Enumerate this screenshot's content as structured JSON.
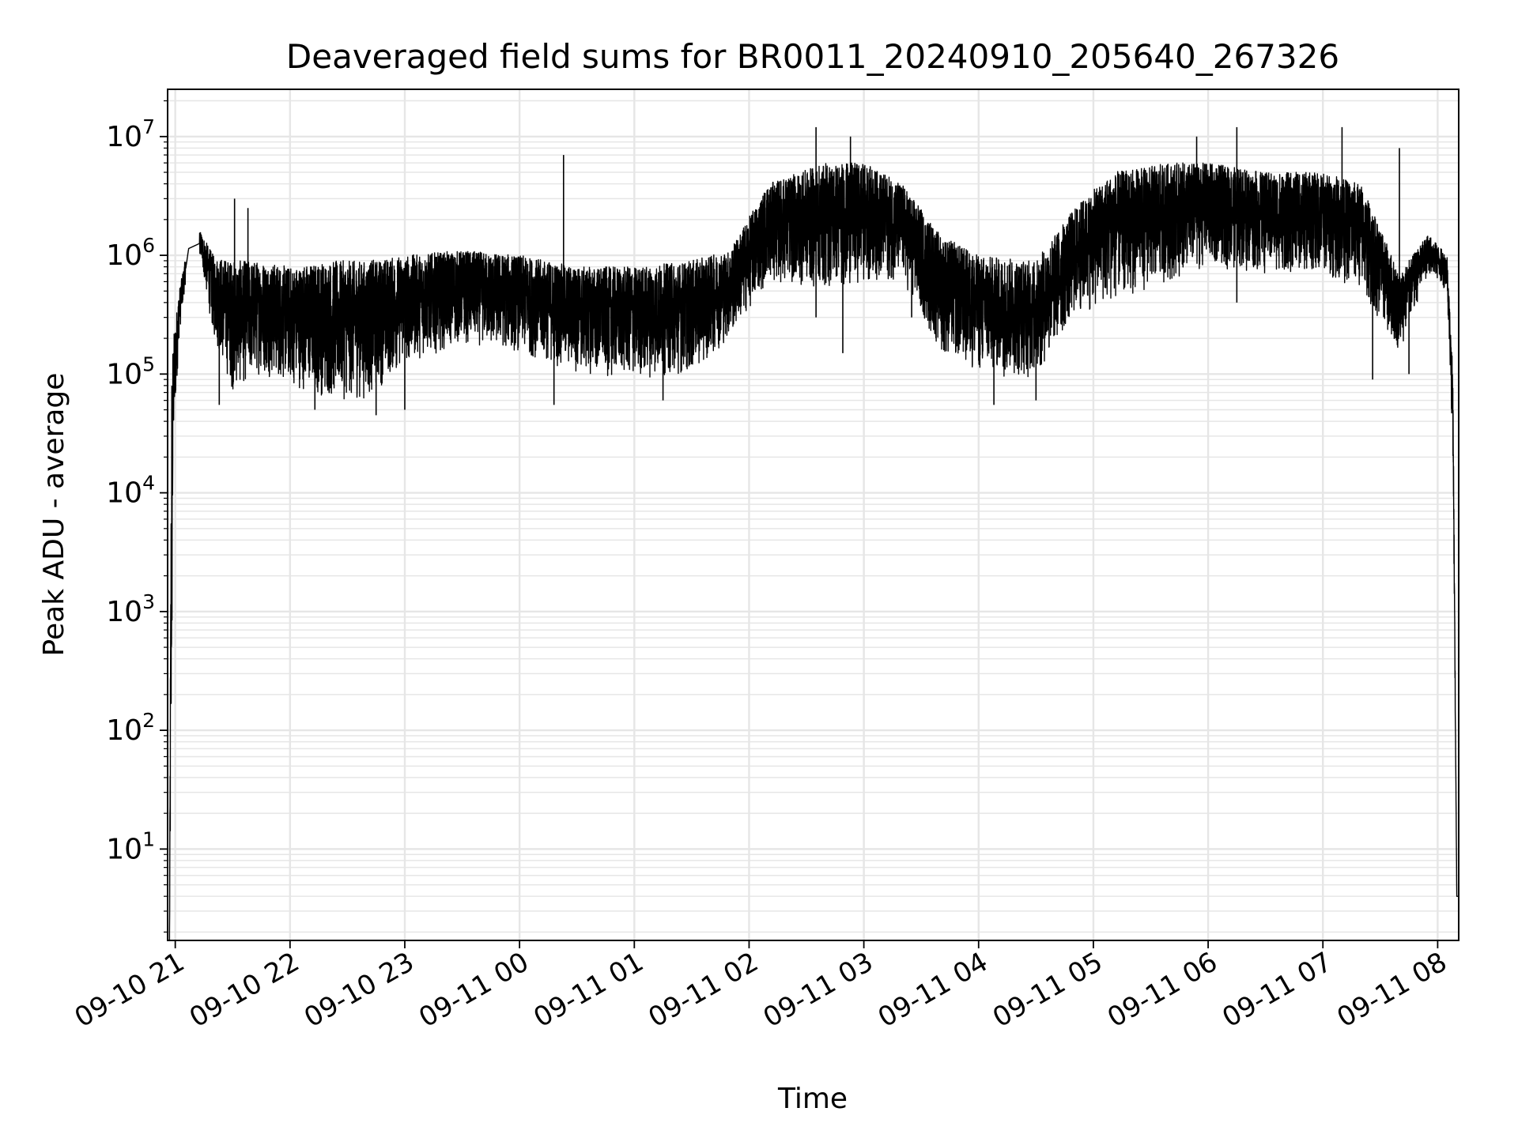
{
  "chart_data": {
    "type": "line",
    "title": "Deaveraged field sums for BR0011_20240910_205640_267326",
    "xlabel": "Time",
    "ylabel": "Peak ADU - average",
    "x_is_datetime": true,
    "x_range": [
      "2024-09-10T20:56",
      "2024-09-11T08:11"
    ],
    "y_scale": "log",
    "y_range": [
      1.7,
      25000000
    ],
    "x_ticks": [
      {
        "t": "2024-09-10T21:00",
        "label": "09-10 21"
      },
      {
        "t": "2024-09-10T22:00",
        "label": "09-10 22"
      },
      {
        "t": "2024-09-10T23:00",
        "label": "09-10 23"
      },
      {
        "t": "2024-09-11T00:00",
        "label": "09-11 00"
      },
      {
        "t": "2024-09-11T01:00",
        "label": "09-11 01"
      },
      {
        "t": "2024-09-11T02:00",
        "label": "09-11 02"
      },
      {
        "t": "2024-09-11T03:00",
        "label": "09-11 03"
      },
      {
        "t": "2024-09-11T04:00",
        "label": "09-11 04"
      },
      {
        "t": "2024-09-11T05:00",
        "label": "09-11 05"
      },
      {
        "t": "2024-09-11T06:00",
        "label": "09-11 06"
      },
      {
        "t": "2024-09-11T07:00",
        "label": "09-11 07"
      },
      {
        "t": "2024-09-11T08:00",
        "label": "09-11 08"
      }
    ],
    "y_ticks": [
      {
        "value": 10,
        "base": "10",
        "exp": "1"
      },
      {
        "value": 100,
        "base": "10",
        "exp": "2"
      },
      {
        "value": 1000,
        "base": "10",
        "exp": "3"
      },
      {
        "value": 10000,
        "base": "10",
        "exp": "4"
      },
      {
        "value": 100000,
        "base": "10",
        "exp": "5"
      },
      {
        "value": 1000000,
        "base": "10",
        "exp": "6"
      },
      {
        "value": 10000000,
        "base": "10",
        "exp": "7"
      }
    ],
    "grid": true,
    "minor_grid": true,
    "line_color": "#000000",
    "grid_color": "#e6e6e6",
    "series": [
      {
        "envelope_points": [
          {
            "t": "2024-09-10T20:57",
            "low": 2,
            "high": 2
          },
          {
            "t": "2024-09-10T20:58",
            "low": 20,
            "high": 150000
          },
          {
            "t": "2024-09-10T20:59",
            "low": 20000,
            "high": 200000
          },
          {
            "t": "2024-09-10T21:02",
            "low": 200000,
            "high": 500000
          },
          {
            "t": "2024-09-10T21:07",
            "low": 1000000,
            "high": 1300000
          },
          {
            "t": "2024-09-10T21:13",
            "low": 1000000,
            "high": 1600000
          },
          {
            "t": "2024-09-10T21:20",
            "low": 200000,
            "high": 1000000
          },
          {
            "t": "2024-09-10T21:30",
            "low": 70000,
            "high": 900000
          },
          {
            "t": "2024-09-10T21:45",
            "low": 100000,
            "high": 900000
          },
          {
            "t": "2024-09-10T22:00",
            "low": 80000,
            "high": 800000
          },
          {
            "t": "2024-09-10T22:20",
            "low": 60000,
            "high": 900000
          },
          {
            "t": "2024-09-10T22:40",
            "low": 60000,
            "high": 900000
          },
          {
            "t": "2024-09-10T23:00",
            "low": 120000,
            "high": 1000000
          },
          {
            "t": "2024-09-10T23:30",
            "low": 180000,
            "high": 1100000
          },
          {
            "t": "2024-09-11T00:00",
            "low": 150000,
            "high": 1000000
          },
          {
            "t": "2024-09-11T00:30",
            "low": 100000,
            "high": 800000
          },
          {
            "t": "2024-09-11T01:00",
            "low": 90000,
            "high": 800000
          },
          {
            "t": "2024-09-11T01:30",
            "low": 100000,
            "high": 900000
          },
          {
            "t": "2024-09-11T01:50",
            "low": 200000,
            "high": 1100000
          },
          {
            "t": "2024-09-11T02:10",
            "low": 600000,
            "high": 4000000
          },
          {
            "t": "2024-09-11T02:40",
            "low": 500000,
            "high": 6000000
          },
          {
            "t": "2024-09-11T03:00",
            "low": 600000,
            "high": 6000000
          },
          {
            "t": "2024-09-11T03:20",
            "low": 600000,
            "high": 4000000
          },
          {
            "t": "2024-09-11T03:40",
            "low": 150000,
            "high": 1500000
          },
          {
            "t": "2024-09-11T04:00",
            "low": 100000,
            "high": 1000000
          },
          {
            "t": "2024-09-11T04:30",
            "low": 90000,
            "high": 900000
          },
          {
            "t": "2024-09-11T04:50",
            "low": 300000,
            "high": 2500000
          },
          {
            "t": "2024-09-11T05:10",
            "low": 400000,
            "high": 5000000
          },
          {
            "t": "2024-09-11T05:40",
            "low": 600000,
            "high": 6000000
          },
          {
            "t": "2024-09-11T06:00",
            "low": 800000,
            "high": 6000000
          },
          {
            "t": "2024-09-11T06:30",
            "low": 700000,
            "high": 5000000
          },
          {
            "t": "2024-09-11T07:00",
            "low": 700000,
            "high": 5000000
          },
          {
            "t": "2024-09-11T07:20",
            "low": 500000,
            "high": 4000000
          },
          {
            "t": "2024-09-11T07:40",
            "low": 150000,
            "high": 700000
          },
          {
            "t": "2024-09-11T07:55",
            "low": 700000,
            "high": 1500000
          },
          {
            "t": "2024-09-11T08:05",
            "low": 500000,
            "high": 1000000
          },
          {
            "t": "2024-09-11T08:08",
            "low": 20000,
            "high": 100000
          },
          {
            "t": "2024-09-11T08:10",
            "low": 4,
            "high": 4
          }
        ],
        "spikes": [
          {
            "t": "2024-09-10T21:31",
            "value": 3000000
          },
          {
            "t": "2024-09-10T21:38",
            "value": 2500000
          },
          {
            "t": "2024-09-11T00:23",
            "value": 7000000
          },
          {
            "t": "2024-09-11T02:35",
            "value": 12000000
          },
          {
            "t": "2024-09-11T02:53",
            "value": 10000000
          },
          {
            "t": "2024-09-11T03:00",
            "value": 5000000
          },
          {
            "t": "2024-09-11T05:54",
            "value": 10000000
          },
          {
            "t": "2024-09-11T06:15",
            "value": 12000000
          },
          {
            "t": "2024-09-11T07:10",
            "value": 12000000
          },
          {
            "t": "2024-09-11T07:40",
            "value": 8000000
          }
        ],
        "dips": [
          {
            "t": "2024-09-10T21:23",
            "value": 55000
          },
          {
            "t": "2024-09-10T22:13",
            "value": 50000
          },
          {
            "t": "2024-09-10T22:45",
            "value": 45000
          },
          {
            "t": "2024-09-10T23:00",
            "value": 50000
          },
          {
            "t": "2024-09-11T00:18",
            "value": 55000
          },
          {
            "t": "2024-09-11T01:15",
            "value": 60000
          },
          {
            "t": "2024-09-11T02:35",
            "value": 300000
          },
          {
            "t": "2024-09-11T02:49",
            "value": 150000
          },
          {
            "t": "2024-09-11T03:25",
            "value": 300000
          },
          {
            "t": "2024-09-11T04:08",
            "value": 55000
          },
          {
            "t": "2024-09-11T04:30",
            "value": 60000
          },
          {
            "t": "2024-09-11T06:15",
            "value": 400000
          },
          {
            "t": "2024-09-11T07:26",
            "value": 90000
          },
          {
            "t": "2024-09-11T07:45",
            "value": 100000
          }
        ]
      }
    ]
  }
}
